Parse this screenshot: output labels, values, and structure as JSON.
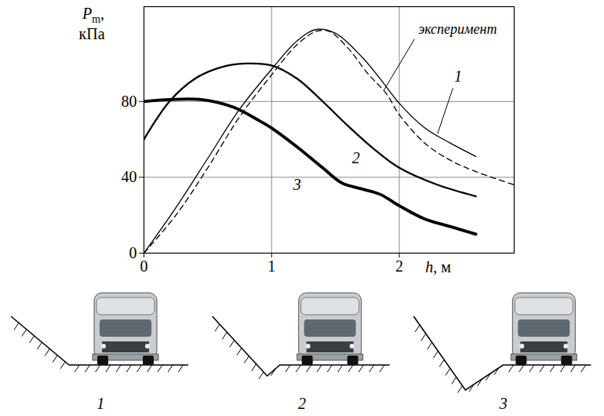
{
  "chart_data": {
    "type": "line",
    "xlabel": "h, м",
    "ylabel": "Pm, кПа",
    "xlim": [
      0,
      2.9
    ],
    "ylim": [
      0,
      130
    ],
    "xticks": [
      0,
      1,
      2
    ],
    "yticks": [
      0,
      40,
      80
    ],
    "grid": true,
    "series": [
      {
        "name": "1",
        "color": "#000000",
        "line_style": "solid",
        "x": [
          0,
          0.25,
          0.5,
          0.75,
          1.0,
          1.2,
          1.35,
          1.5,
          1.7,
          1.85,
          2.0,
          2.2,
          2.4,
          2.6
        ],
        "values": [
          0,
          24,
          50,
          76,
          97,
          112,
          118,
          116,
          104,
          92,
          79,
          66,
          58,
          51
        ],
        "label_pos": [
          2.46,
          93
        ],
        "leader": [
          [
            2.42,
            87
          ],
          [
            2.3,
            63
          ]
        ]
      },
      {
        "name": "2",
        "color": "#000000",
        "line_style": "solid",
        "x": [
          0,
          0.2,
          0.4,
          0.6,
          0.8,
          1.0,
          1.2,
          1.4,
          1.6,
          1.8,
          2.0,
          2.3,
          2.6
        ],
        "values": [
          60,
          80,
          92,
          98,
          100,
          99,
          92,
          80,
          67,
          55,
          45,
          36,
          30
        ],
        "label_pos": [
          1.66,
          50
        ]
      },
      {
        "name": "3",
        "color": "#000000",
        "line_style": "solid",
        "x": [
          0,
          0.2,
          0.45,
          0.7,
          0.9,
          1.0,
          1.2,
          1.4,
          1.55,
          1.7,
          1.85,
          2.0,
          2.2,
          2.4,
          2.6
        ],
        "values": [
          80,
          81,
          81,
          77,
          70,
          66,
          56,
          45,
          37,
          34,
          31,
          25,
          18,
          14,
          10
        ],
        "label_pos": [
          1.2,
          36
        ]
      },
      {
        "name": "эксперимент",
        "color": "#000000",
        "line_style": "dashed",
        "x": [
          0,
          0.25,
          0.5,
          0.75,
          1.0,
          1.2,
          1.35,
          1.45,
          1.6,
          1.75,
          1.9,
          2.0,
          2.2,
          2.4,
          2.6,
          2.9
        ],
        "values": [
          0,
          20,
          45,
          72,
          94,
          110,
          117,
          117,
          108,
          95,
          84,
          73,
          58,
          49,
          43,
          36
        ],
        "label_pos": [
          2.15,
          118
        ],
        "leader": [
          [
            2.12,
            113
          ],
          [
            1.88,
            86
          ]
        ]
      }
    ],
    "diagram_labels": [
      "1",
      "2",
      "3"
    ]
  }
}
